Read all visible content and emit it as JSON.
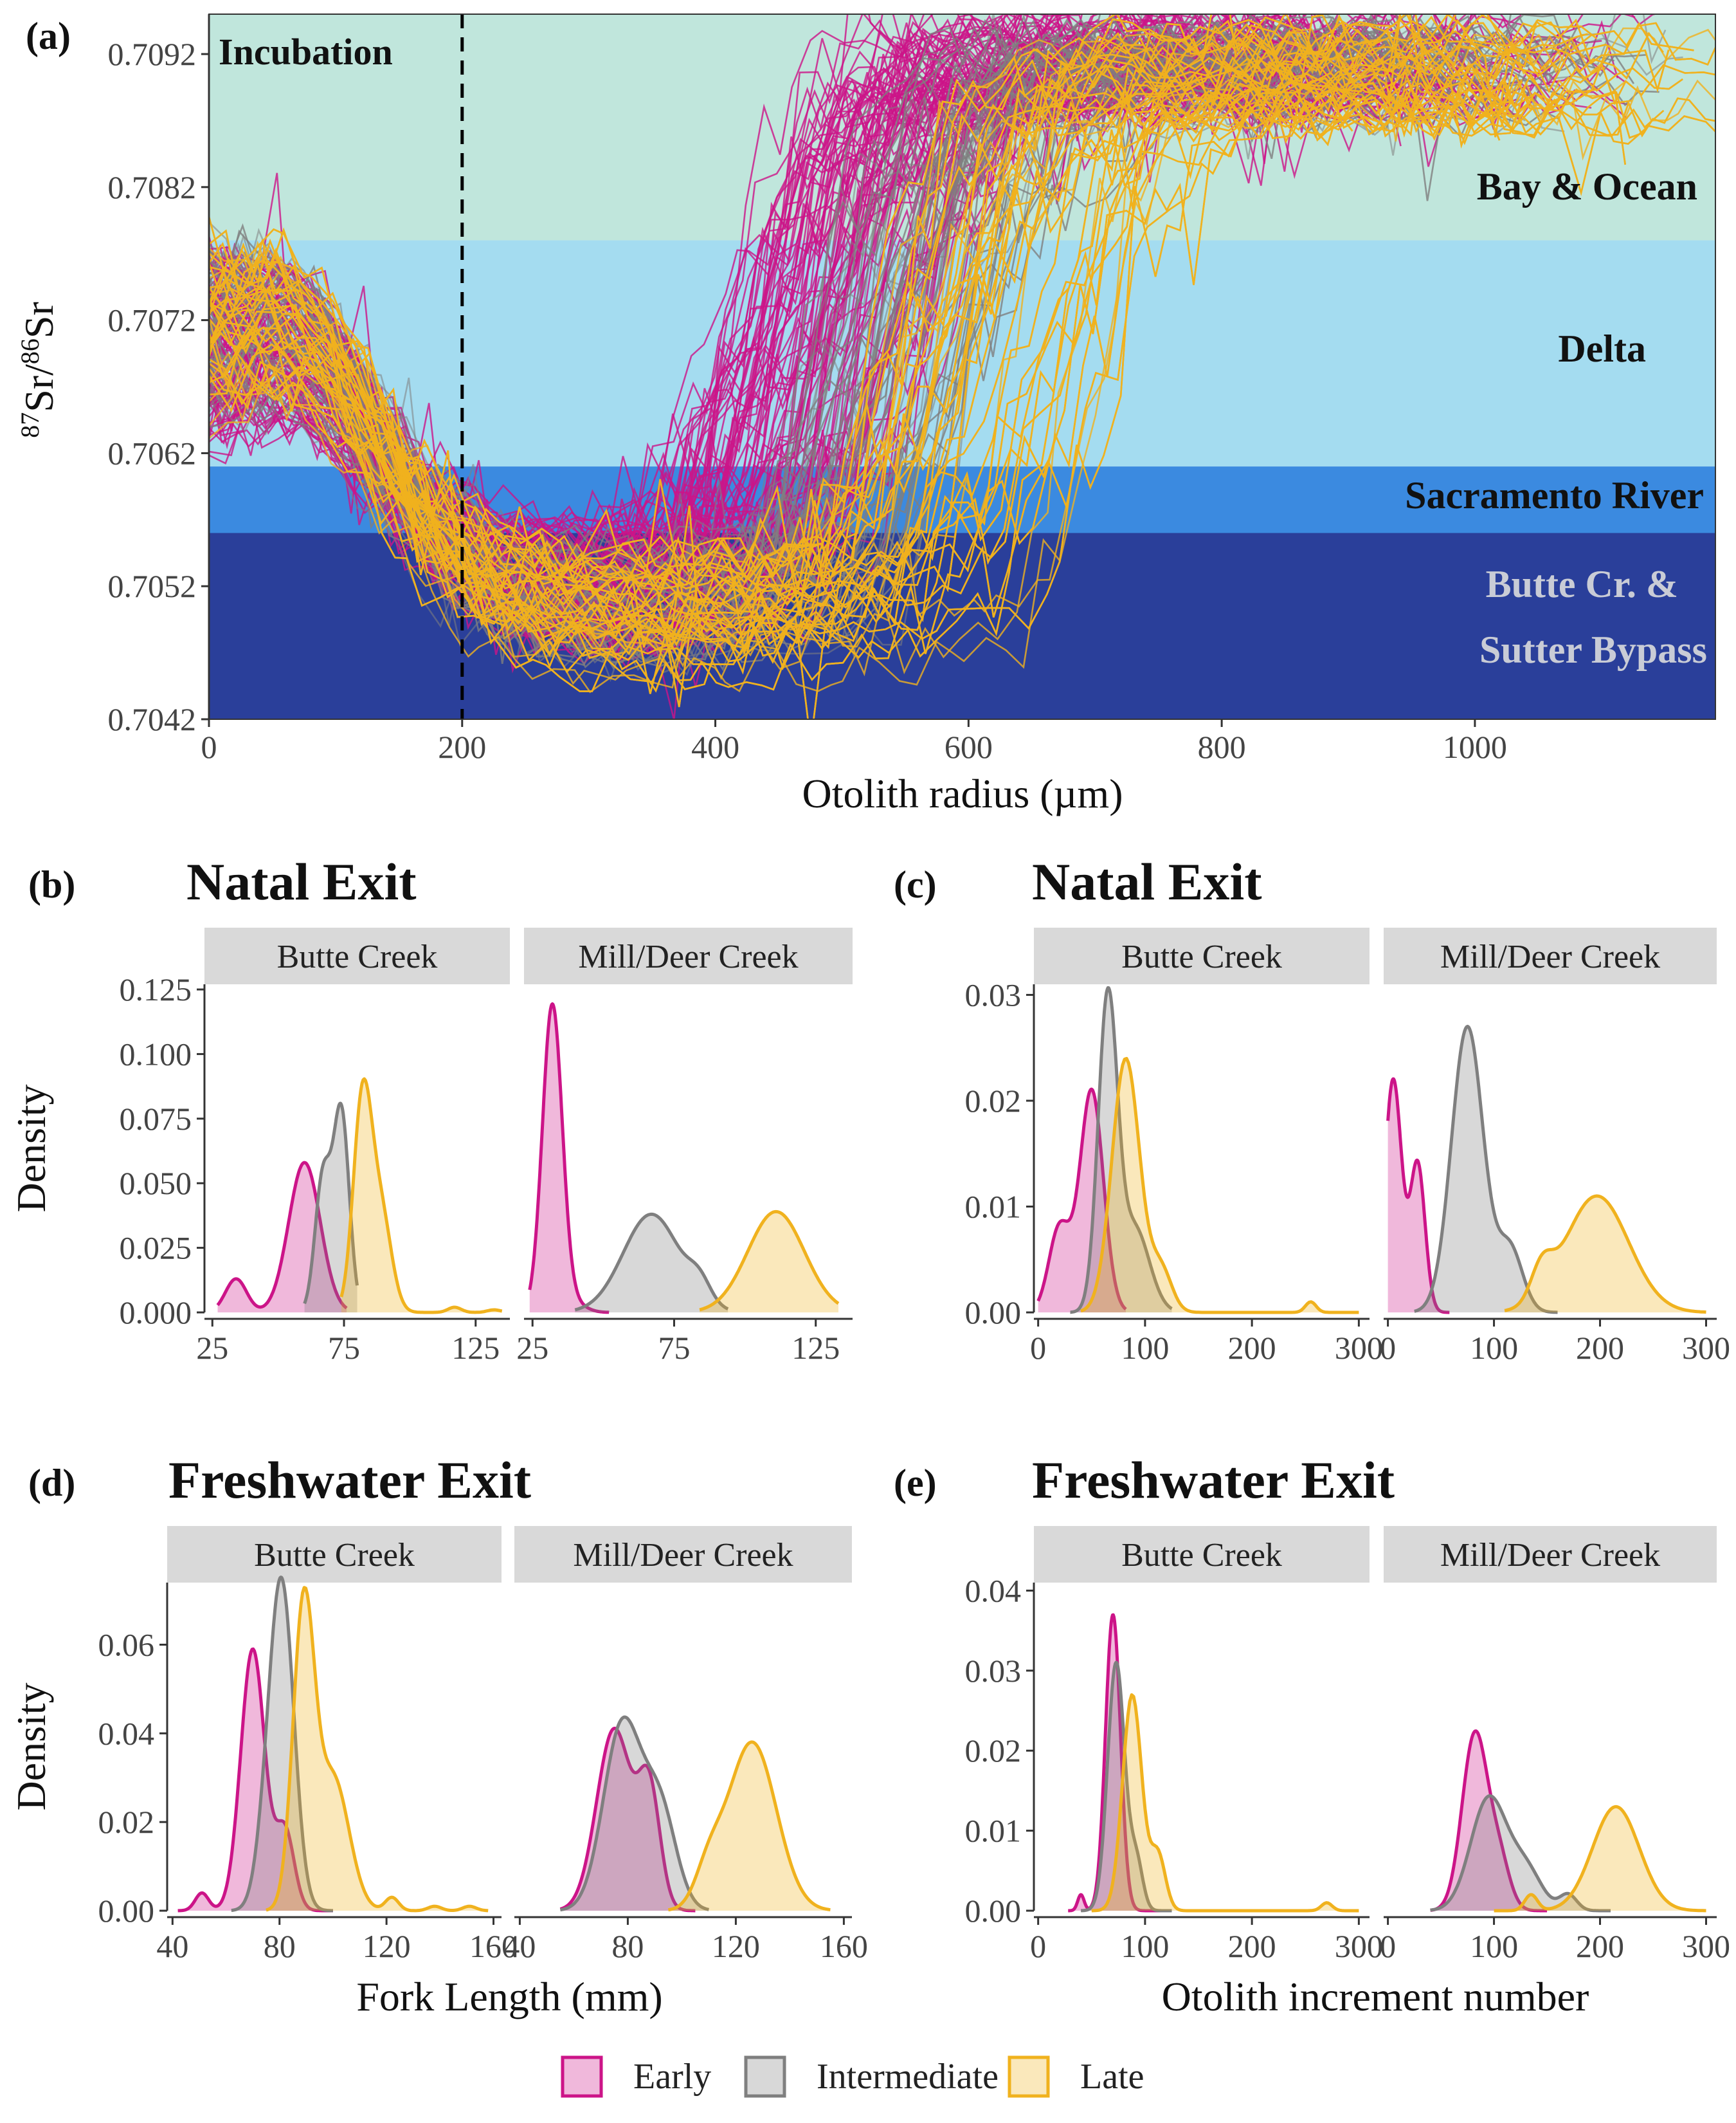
{
  "colors": {
    "early": "#cc1488",
    "intermediate": "#7f7f7f",
    "late": "#f0b21e",
    "bay": "#c0e6dc",
    "delta": "#a4dcf0",
    "sacramento": "#3b8ae0",
    "butte": "#2a3f9a",
    "strip": "#d9d9d9"
  },
  "chart_data": [
    {
      "type": "line",
      "panel_tag": "(a)",
      "xlabel": "Otolith radius (µm)",
      "ylabel_parts": [
        "87",
        "Sr/",
        "86",
        "Sr"
      ],
      "xlim": [
        0,
        1190
      ],
      "ylim": [
        0.7042,
        0.7095
      ],
      "xticks": [
        0,
        200,
        400,
        600,
        800,
        1000
      ],
      "yticks": [
        0.7042,
        0.7052,
        0.7062,
        0.7072,
        0.7082,
        0.7092
      ],
      "ytick_labels": [
        "0.7042",
        "0.7052",
        "0.7062",
        "0.7072",
        "0.7082",
        "0.7092"
      ],
      "vline_x": 200,
      "vline_label": "Incubation",
      "zones": [
        {
          "name": "Bay & Ocean",
          "ymin": 0.7078,
          "ymax": 0.7095,
          "color_key": "bay",
          "label_color": "#111111"
        },
        {
          "name": "Delta",
          "ymin": 0.7061,
          "ymax": 0.7078,
          "color_key": "delta",
          "label_color": "#111111"
        },
        {
          "name": "Sacramento River",
          "ymin": 0.7056,
          "ymax": 0.7061,
          "color_key": "sacramento",
          "label_color": "#111111"
        },
        {
          "name": "Butte Cr. &",
          "name2": "Sutter Bypass",
          "ymin": 0.7042,
          "ymax": 0.7056,
          "color_key": "butte",
          "label_color": "#c9ccd6"
        }
      ],
      "series": [
        {
          "name": "Early",
          "count": 95,
          "start": 0.707,
          "low": 0.7052,
          "high": 0.7092,
          "switch_radius": [
            400,
            570
          ]
        },
        {
          "name": "Intermediate",
          "count": 75,
          "start": 0.7071,
          "low": 0.7051,
          "high": 0.7091,
          "switch_radius": [
            470,
            620
          ]
        },
        {
          "name": "Late",
          "count": 110,
          "start": 0.7072,
          "low": 0.705,
          "high": 0.7091,
          "switch_radius": [
            520,
            720
          ]
        }
      ]
    },
    {
      "type": "area",
      "panel_tag": "(b)",
      "title": "Natal Exit",
      "xlabel": "",
      "ylabel": "Density",
      "ylim": [
        0,
        0.127
      ],
      "yticks": [
        0,
        0.025,
        0.05,
        0.075,
        0.1,
        0.125
      ],
      "ytick_labels": [
        "0.000",
        "0.025",
        "0.050",
        "0.075",
        "0.100",
        "0.125"
      ],
      "facets": [
        {
          "label": "Butte Creek",
          "xlim": [
            22,
            138
          ],
          "xticks": [
            25,
            75,
            125
          ],
          "xtick_labels": [
            "25",
            "75",
            "125"
          ],
          "series": [
            {
              "name": "Early",
              "domain": [
                27,
                76
              ],
              "peaks": [
                [
                  60,
                  0.058,
                  6
                ],
                [
                  34,
                  0.013,
                  4
                ]
              ]
            },
            {
              "name": "Intermediate",
              "domain": [
                60,
                80
              ],
              "peaks": [
                [
                  67,
                  0.052,
                  3
                ],
                [
                  74,
                  0.077,
                  3
                ]
              ]
            },
            {
              "name": "Late",
              "domain": [
                74,
                135
              ],
              "peaks": [
                [
                  82,
                  0.081,
                  3.5
                ],
                [
                  89,
                  0.038,
                  4
                ],
                [
                  117,
                  0.002,
                  2.5
                ],
                [
                  132,
                  0.001,
                  2.5
                ]
              ]
            }
          ]
        },
        {
          "label": "Mill/Deer Creek",
          "xlim": [
            22,
            138
          ],
          "xticks": [
            25,
            75,
            125
          ],
          "xtick_labels": [
            "25",
            "75",
            "125"
          ],
          "series": [
            {
              "name": "Early",
              "domain": [
                24,
                52
              ],
              "peaks": [
                [
                  32,
                  0.119,
                  3.5
                ],
                [
                  40,
                  0.003,
                  4
                ]
              ]
            },
            {
              "name": "Intermediate",
              "domain": [
                40,
                94
              ],
              "peaks": [
                [
                  67,
                  0.038,
                  10
                ],
                [
                  84,
                  0.008,
                  4
                ]
              ]
            },
            {
              "name": "Late",
              "domain": [
                84,
                133
              ],
              "peaks": [
                [
                  111,
                  0.039,
                  10
                ]
              ]
            }
          ]
        }
      ]
    },
    {
      "type": "area",
      "panel_tag": "(c)",
      "title": "Natal Exit",
      "xlabel": "",
      "ylabel": "",
      "ylim": [
        0,
        0.031
      ],
      "yticks": [
        0,
        0.01,
        0.02,
        0.03
      ],
      "ytick_labels": [
        "0.00",
        "0.01",
        "0.02",
        "0.03"
      ],
      "facets": [
        {
          "label": "Butte Creek",
          "xlim": [
            -4,
            310
          ],
          "xticks": [
            0,
            100,
            200,
            300
          ],
          "xtick_labels": [
            "0",
            "100",
            "200",
            "300"
          ],
          "series": [
            {
              "name": "Early",
              "domain": [
                0,
                82
              ],
              "peaks": [
                [
                  50,
                  0.021,
                  11
                ],
                [
                  20,
                  0.008,
                  10
                ]
              ]
            },
            {
              "name": "Intermediate",
              "domain": [
                30,
                125
              ],
              "peaks": [
                [
                  65,
                  0.029,
                  9
                ],
                [
                  90,
                  0.008,
                  14
                ]
              ]
            },
            {
              "name": "Late",
              "domain": [
                40,
                300
              ],
              "peaks": [
                [
                  82,
                  0.024,
                  13
                ],
                [
                  115,
                  0.004,
                  10
                ],
                [
                  255,
                  0.001,
                  5
                ]
              ]
            }
          ]
        },
        {
          "label": "Mill/Deer Creek",
          "xlim": [
            -4,
            310
          ],
          "xticks": [
            0,
            100,
            200,
            300
          ],
          "xtick_labels": [
            "0",
            "100",
            "200",
            "300"
          ],
          "series": [
            {
              "name": "Early",
              "domain": [
                0,
                58
              ],
              "peaks": [
                [
                  5,
                  0.022,
                  8
                ],
                [
                  28,
                  0.014,
                  7
                ]
              ]
            },
            {
              "name": "Intermediate",
              "domain": [
                25,
                160
              ],
              "peaks": [
                [
                  75,
                  0.027,
                  15
                ],
                [
                  115,
                  0.006,
                  12
                ]
              ]
            },
            {
              "name": "Late",
              "domain": [
                110,
                300
              ],
              "peaks": [
                [
                  197,
                  0.011,
                  30
                ],
                [
                  145,
                  0.003,
                  10
                ]
              ]
            }
          ]
        }
      ]
    },
    {
      "type": "area",
      "panel_tag": "(d)",
      "title": "Freshwater Exit",
      "xlabel": "Fork Length (mm)",
      "ylabel": "Density",
      "ylim": [
        0,
        0.074
      ],
      "yticks": [
        0,
        0.02,
        0.04,
        0.06
      ],
      "ytick_labels": [
        "0.00",
        "0.02",
        "0.04",
        "0.06"
      ],
      "facets": [
        {
          "label": "Butte Creek",
          "xlim": [
            38,
            163
          ],
          "xticks": [
            40,
            80,
            120,
            160
          ],
          "xtick_labels": [
            "40",
            "80",
            "120",
            "160"
          ],
          "series": [
            {
              "name": "Early",
              "domain": [
                42,
                100
              ],
              "peaks": [
                [
                  70,
                  0.059,
                  4.5
                ],
                [
                  51,
                  0.004,
                  2.5
                ],
                [
                  82,
                  0.018,
                  3.5
                ]
              ]
            },
            {
              "name": "Intermediate",
              "domain": [
                62,
                100
              ],
              "peaks": [
                [
                  81,
                  0.071,
                  4.5
                ],
                [
                  75,
                  0.012,
                  4
                ]
              ]
            },
            {
              "name": "Late",
              "domain": [
                75,
                158
              ],
              "peaks": [
                [
                  89,
                  0.067,
                  4
                ],
                [
                  100,
                  0.03,
                  6
                ],
                [
                  122,
                  0.003,
                  2.5
                ],
                [
                  138,
                  0.001,
                  2.5
                ],
                [
                  151,
                  0.001,
                  2.5
                ]
              ]
            }
          ]
        },
        {
          "label": "Mill/Deer Creek",
          "xlim": [
            38,
            163
          ],
          "xticks": [
            40,
            80,
            120,
            160
          ],
          "xtick_labels": [
            "40",
            "80",
            "120",
            "160"
          ],
          "series": [
            {
              "name": "Early",
              "domain": [
                55,
                105
              ],
              "peaks": [
                [
                  75,
                  0.041,
                  6.5
                ],
                [
                  88,
                  0.026,
                  4
                ]
              ]
            },
            {
              "name": "Intermediate",
              "domain": [
                55,
                110
              ],
              "peaks": [
                [
                  78,
                  0.042,
                  7
                ],
                [
                  92,
                  0.022,
                  6
                ]
              ]
            },
            {
              "name": "Late",
              "domain": [
                95,
                155
              ],
              "peaks": [
                [
                  126,
                  0.038,
                  9
                ],
                [
                  110,
                  0.008,
                  5
                ]
              ]
            }
          ]
        }
      ]
    },
    {
      "type": "area",
      "panel_tag": "(e)",
      "title": "Freshwater Exit",
      "xlabel": "Otolith increment number",
      "ylabel": "",
      "ylim": [
        0,
        0.041
      ],
      "yticks": [
        0,
        0.01,
        0.02,
        0.03,
        0.04
      ],
      "ytick_labels": [
        "0.00",
        "0.01",
        "0.02",
        "0.03",
        "0.04"
      ],
      "facets": [
        {
          "label": "Butte Creek",
          "xlim": [
            -4,
            310
          ],
          "xticks": [
            0,
            100,
            200,
            300
          ],
          "xtick_labels": [
            "0",
            "100",
            "200",
            "300"
          ],
          "series": [
            {
              "name": "Early",
              "domain": [
                28,
                115
              ],
              "peaks": [
                [
                  70,
                  0.037,
                  7
                ],
                [
                  40,
                  0.002,
                  3
                ]
              ]
            },
            {
              "name": "Intermediate",
              "domain": [
                40,
                125
              ],
              "peaks": [
                [
                  73,
                  0.031,
                  8
                ],
                [
                  92,
                  0.006,
                  6
                ]
              ]
            },
            {
              "name": "Late",
              "domain": [
                50,
                300
              ],
              "peaks": [
                [
                  88,
                  0.027,
                  9
                ],
                [
                  112,
                  0.007,
                  7
                ],
                [
                  270,
                  0.001,
                  5
                ]
              ]
            }
          ]
        },
        {
          "label": "Mill/Deer Creek",
          "xlim": [
            -4,
            310
          ],
          "xticks": [
            0,
            100,
            200,
            300
          ],
          "xtick_labels": [
            "0",
            "100",
            "200",
            "300"
          ],
          "series": [
            {
              "name": "Early",
              "domain": [
                40,
                150
              ],
              "peaks": [
                [
                  82,
                  0.022,
                  12
                ],
                [
                  105,
                  0.006,
                  10
                ]
              ]
            },
            {
              "name": "Intermediate",
              "domain": [
                40,
                210
              ],
              "peaks": [
                [
                  95,
                  0.014,
                  17
                ],
                [
                  130,
                  0.005,
                  15
                ],
                [
                  170,
                  0.002,
                  8
                ]
              ]
            },
            {
              "name": "Late",
              "domain": [
                100,
                300
              ],
              "peaks": [
                [
                  215,
                  0.013,
                  22
                ],
                [
                  135,
                  0.002,
                  6
                ]
              ]
            }
          ]
        }
      ]
    }
  ],
  "legend": {
    "items": [
      {
        "label": "Early",
        "color_key": "early"
      },
      {
        "label": "Intermediate",
        "color_key": "intermediate"
      },
      {
        "label": "Late",
        "color_key": "late"
      }
    ]
  }
}
